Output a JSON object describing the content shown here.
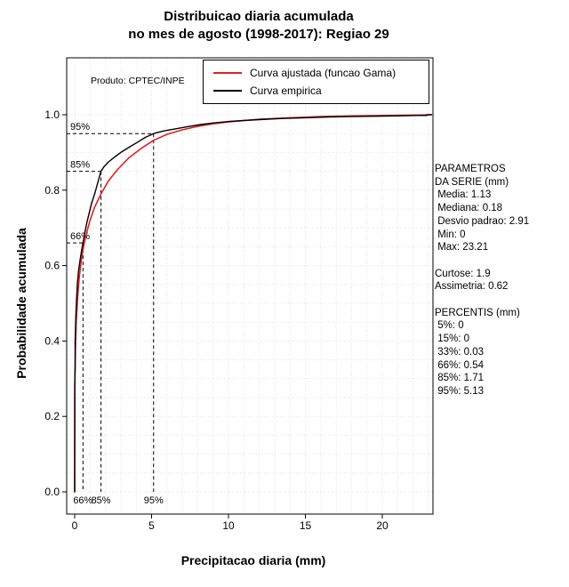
{
  "title": {
    "line1": "Distribuicao diaria acumulada",
    "line2": "no mes de agosto (1998-2017): Regiao 29"
  },
  "plot_note": "Produto: CPTEC/INPE",
  "stats_panel": {
    "lines": [
      "PARAMETROS",
      "DA SERIE (mm)",
      " Media: 1.13",
      " Mediana: 0.18",
      " Desvio padrao: 2.91",
      " Min: 0",
      " Max: 23.21",
      "",
      "Curtose: 1.9",
      "Assimetria: 0.62",
      "",
      "PERCENTIS (mm)",
      " 5%: 0",
      " 15%: 0",
      " 33%: 0.03",
      " 66%: 0.54",
      " 85%: 1.71",
      " 95%: 5.13"
    ]
  },
  "chart_data": {
    "type": "line",
    "title": "Distribuicao diaria acumulada no mes de agosto (1998-2017): Regiao 29",
    "xlabel": "Precipitacao diaria (mm)",
    "ylabel": "Probabilidade acumulada",
    "xlim": [
      0,
      23.21
    ],
    "ylim": [
      0,
      1
    ],
    "xticks": [
      0,
      5,
      10,
      15,
      20
    ],
    "yticks": [
      0,
      0.2,
      0.4,
      0.6,
      0.8,
      1.0
    ],
    "ytick_labels": [
      "0.0",
      "0.2",
      "0.4",
      "0.6",
      "0.8",
      "1.0"
    ],
    "grid": {
      "x_step": 1,
      "y_step": 0.05
    },
    "legend_position": "top-right",
    "series": [
      {
        "name": "Curva ajustada (funcao Gama)",
        "color": "#e02020",
        "x": [
          0,
          0.02,
          0.05,
          0.1,
          0.2,
          0.3,
          0.45,
          0.6,
          0.8,
          1.0,
          1.3,
          1.71,
          2.2,
          2.8,
          3.5,
          4.3,
          5.13,
          6,
          7,
          8,
          9,
          10,
          12,
          14,
          16,
          18,
          20,
          22,
          23.2
        ],
        "y": [
          0,
          0.3,
          0.38,
          0.45,
          0.52,
          0.57,
          0.62,
          0.655,
          0.69,
          0.72,
          0.755,
          0.79,
          0.825,
          0.855,
          0.885,
          0.91,
          0.932,
          0.948,
          0.96,
          0.969,
          0.976,
          0.981,
          0.988,
          0.992,
          0.995,
          0.997,
          0.998,
          0.999,
          1.0
        ]
      },
      {
        "name": "Curva empirica",
        "color": "#000000",
        "x": [
          0,
          0,
          0.03,
          0.03,
          0.08,
          0.12,
          0.18,
          0.25,
          0.35,
          0.45,
          0.54,
          0.65,
          0.8,
          0.95,
          1.1,
          1.3,
          1.5,
          1.71,
          1.9,
          2.2,
          2.6,
          3.0,
          3.5,
          4.0,
          4.6,
          5.13,
          5.8,
          6.5,
          7.3,
          8.2,
          9.0,
          10,
          11,
          12,
          13.5,
          15,
          16.5,
          18,
          19.5,
          21,
          22.3,
          22.9,
          22.9,
          23.2
        ],
        "y": [
          0,
          0.28,
          0.33,
          0.4,
          0.47,
          0.51,
          0.555,
          0.585,
          0.615,
          0.64,
          0.66,
          0.685,
          0.715,
          0.74,
          0.765,
          0.79,
          0.82,
          0.85,
          0.862,
          0.875,
          0.888,
          0.9,
          0.913,
          0.925,
          0.94,
          0.95,
          0.957,
          0.962,
          0.968,
          0.974,
          0.978,
          0.982,
          0.985,
          0.987,
          0.99,
          0.992,
          0.994,
          0.995,
          0.996,
          0.997,
          0.998,
          0.998,
          1.0,
          1.0
        ]
      }
    ],
    "percentile_markers": [
      {
        "label": "66%",
        "x": 0.54,
        "y": 0.66
      },
      {
        "label": "85%",
        "x": 1.71,
        "y": 0.85
      },
      {
        "label": "95%",
        "x": 5.13,
        "y": 0.95
      }
    ]
  }
}
